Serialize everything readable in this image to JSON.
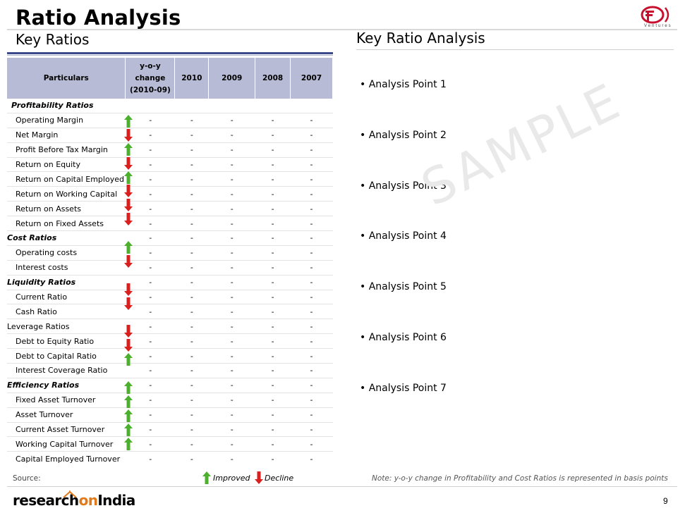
{
  "header": {
    "title": "Ratio Analysis",
    "left_subtitle": "Key Ratios",
    "right_subtitle": "Key Ratio Analysis",
    "logo_caption": "Ventures"
  },
  "table": {
    "headers": {
      "particulars": "Particulars",
      "yoy_line1": "y-o-y",
      "yoy_line2": "change",
      "yoy_line3": "(2010-09)",
      "y2010": "2010",
      "y2009": "2009",
      "y2008": "2008",
      "y2007": "2007"
    },
    "rows": [
      {
        "label": "Profitability Ratios",
        "type": "cat-italic-indent",
        "trend": "",
        "values": [
          "",
          "",
          "",
          "",
          ""
        ]
      },
      {
        "label": "Operating Margin",
        "type": "item",
        "trend": "up",
        "values": [
          "-",
          "-",
          "-",
          "-",
          "-"
        ]
      },
      {
        "label": "Net Margin",
        "type": "item",
        "trend": "down",
        "values": [
          "-",
          "-",
          "-",
          "-",
          "-"
        ]
      },
      {
        "label": "Profit Before Tax Margin",
        "type": "item",
        "trend": "up",
        "values": [
          "-",
          "-",
          "-",
          "-",
          "-"
        ]
      },
      {
        "label": "Return on Equity",
        "type": "item",
        "trend": "down",
        "values": [
          "-",
          "-",
          "-",
          "-",
          "-"
        ]
      },
      {
        "label": "Return on Capital Employed",
        "type": "item",
        "trend": "up",
        "values": [
          "-",
          "-",
          "-",
          "-",
          "-"
        ]
      },
      {
        "label": "Return on Working Capital",
        "type": "item",
        "trend": "down",
        "values": [
          "-",
          "-",
          "-",
          "-",
          "-"
        ]
      },
      {
        "label": "Return on Assets",
        "type": "item",
        "trend": "down",
        "values": [
          "-",
          "-",
          "-",
          "-",
          "-"
        ]
      },
      {
        "label": "Return on Fixed Assets",
        "type": "item",
        "trend": "down",
        "values": [
          "-",
          "-",
          "-",
          "-",
          "-"
        ]
      },
      {
        "label": "Cost Ratios",
        "type": "cat-italic",
        "trend": "",
        "values": [
          "-",
          "-",
          "-",
          "-",
          "-"
        ]
      },
      {
        "label": "Operating costs",
        "type": "item",
        "trend": "up",
        "values": [
          "-",
          "-",
          "-",
          "-",
          "-"
        ]
      },
      {
        "label": "Interest costs",
        "type": "item",
        "trend": "down",
        "values": [
          "-",
          "-",
          "-",
          "-",
          "-"
        ]
      },
      {
        "label": "Liquidity Ratios",
        "type": "cat-italic",
        "trend": "",
        "values": [
          "-",
          "-",
          "-",
          "-",
          "-"
        ]
      },
      {
        "label": "Current Ratio",
        "type": "item",
        "trend": "down",
        "values": [
          "-",
          "-",
          "-",
          "-",
          "-"
        ]
      },
      {
        "label": "Cash Ratio",
        "type": "item",
        "trend": "down",
        "values": [
          "-",
          "-",
          "-",
          "-",
          "-"
        ]
      },
      {
        "label": "Leverage Ratios",
        "type": "cat-plain",
        "trend": "",
        "values": [
          "-",
          "-",
          "-",
          "-",
          "-"
        ]
      },
      {
        "label": "Debt to Equity Ratio",
        "type": "item",
        "trend": "down",
        "values": [
          "-",
          "-",
          "-",
          "-",
          "-"
        ]
      },
      {
        "label": "Debt to Capital Ratio",
        "type": "item",
        "trend": "down",
        "values": [
          "-",
          "-",
          "-",
          "-",
          "-"
        ]
      },
      {
        "label": "Interest Coverage Ratio",
        "type": "item",
        "trend": "up",
        "values": [
          "-",
          "-",
          "-",
          "-",
          "-"
        ]
      },
      {
        "label": "Efficiency Ratios",
        "type": "cat-italic",
        "trend": "",
        "values": [
          "-",
          "-",
          "-",
          "-",
          "-"
        ]
      },
      {
        "label": "Fixed Asset Turnover",
        "type": "item",
        "trend": "up",
        "values": [
          "-",
          "-",
          "-",
          "-",
          "-"
        ]
      },
      {
        "label": "Asset Turnover",
        "type": "item",
        "trend": "up",
        "values": [
          "-",
          "-",
          "-",
          "-",
          "-"
        ]
      },
      {
        "label": "Current Asset Turnover",
        "type": "item",
        "trend": "up",
        "values": [
          "-",
          "-",
          "-",
          "-",
          "-"
        ]
      },
      {
        "label": "Working Capital Turnover",
        "type": "item",
        "trend": "up",
        "values": [
          "-",
          "-",
          "-",
          "-",
          "-"
        ]
      },
      {
        "label": "Capital Employed Turnover",
        "type": "item",
        "trend": "up",
        "values": [
          "-",
          "-",
          "-",
          "-",
          "-"
        ]
      }
    ]
  },
  "analysis_points": [
    "• Analysis Point 1",
    "• Analysis Point 2",
    "• Analysis Point 3",
    "• Analysis Point 4",
    "• Analysis Point 5",
    "• Analysis Point 6",
    "• Analysis Point 7"
  ],
  "watermark": "SAMPLE",
  "footer": {
    "source_label": "Source:",
    "legend_improved": "Improved",
    "legend_decline": "Decline",
    "note": "Note: y-o-y change in Profitability and Cost Ratios is represented in basis points",
    "brand_left": "research",
    "brand_mid": "on",
    "brand_right": "India",
    "page_number": "9"
  },
  "colors": {
    "header_fill": "#b8bbd6",
    "rule_blue": "#3b4a8a",
    "arrow_up": "#4caf2e",
    "arrow_down": "#d9201f",
    "logo_red": "#c8102e",
    "brand_orange": "#e07a1a"
  },
  "icons": {
    "up": "up-arrow-icon",
    "down": "down-arrow-icon"
  }
}
